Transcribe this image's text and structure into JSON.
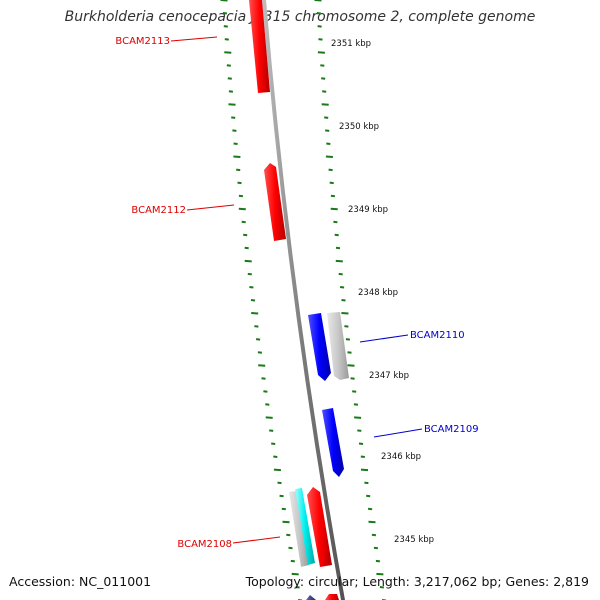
{
  "title": "Burkholderia cenocepacia J2315 chromosome 2, complete genome",
  "footer": {
    "accession": "Accession: NC_011001",
    "summary": "Topology: circular; Length: 3,217,062 bp; Genes: 2,819"
  },
  "scale_labels": [
    "2351 kbp",
    "2350 kbp",
    "2349 kbp",
    "2348 kbp",
    "2347 kbp",
    "2346 kbp",
    "2345 kbp"
  ],
  "genes": [
    {
      "name": "BCAM2113",
      "strand": "minus",
      "color": "#ff0000"
    },
    {
      "name": "BCAM2112",
      "strand": "minus",
      "color": "#ff0000"
    },
    {
      "name": "BCAM2110",
      "strand": "plus",
      "color": "#0000ff"
    },
    {
      "name": "BCAM2109",
      "strand": "plus",
      "color": "#0000ff"
    },
    {
      "name": "BCAM2108",
      "strand": "minus",
      "color": "#ff0000"
    }
  ],
  "colors": {
    "backbone": "#888888",
    "tick": "#1a7a1a",
    "minus_label": "#dd0000",
    "plus_label": "#0000cc",
    "scale_text": "#111111"
  }
}
